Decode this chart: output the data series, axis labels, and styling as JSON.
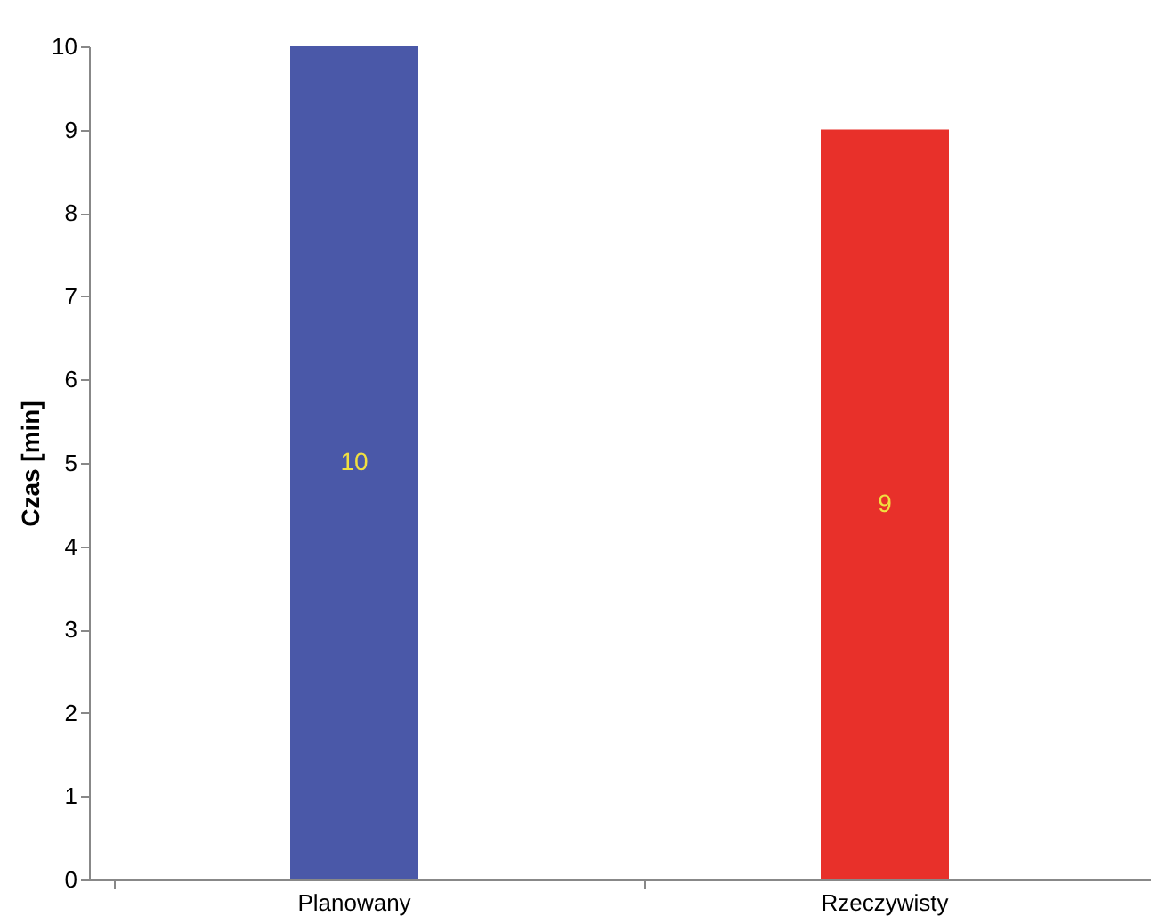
{
  "chart_data": {
    "type": "bar",
    "ylabel": "Czas [min]",
    "categories": [
      "Planowany",
      "Rzeczywisty"
    ],
    "values": [
      10,
      9
    ],
    "colors": [
      "#4a58a8",
      "#e8302a"
    ],
    "ylim": [
      0,
      10
    ],
    "yticks": [
      0,
      1,
      2,
      3,
      4,
      5,
      6,
      7,
      8,
      9,
      10
    ],
    "grid": false,
    "data_labels": true
  }
}
